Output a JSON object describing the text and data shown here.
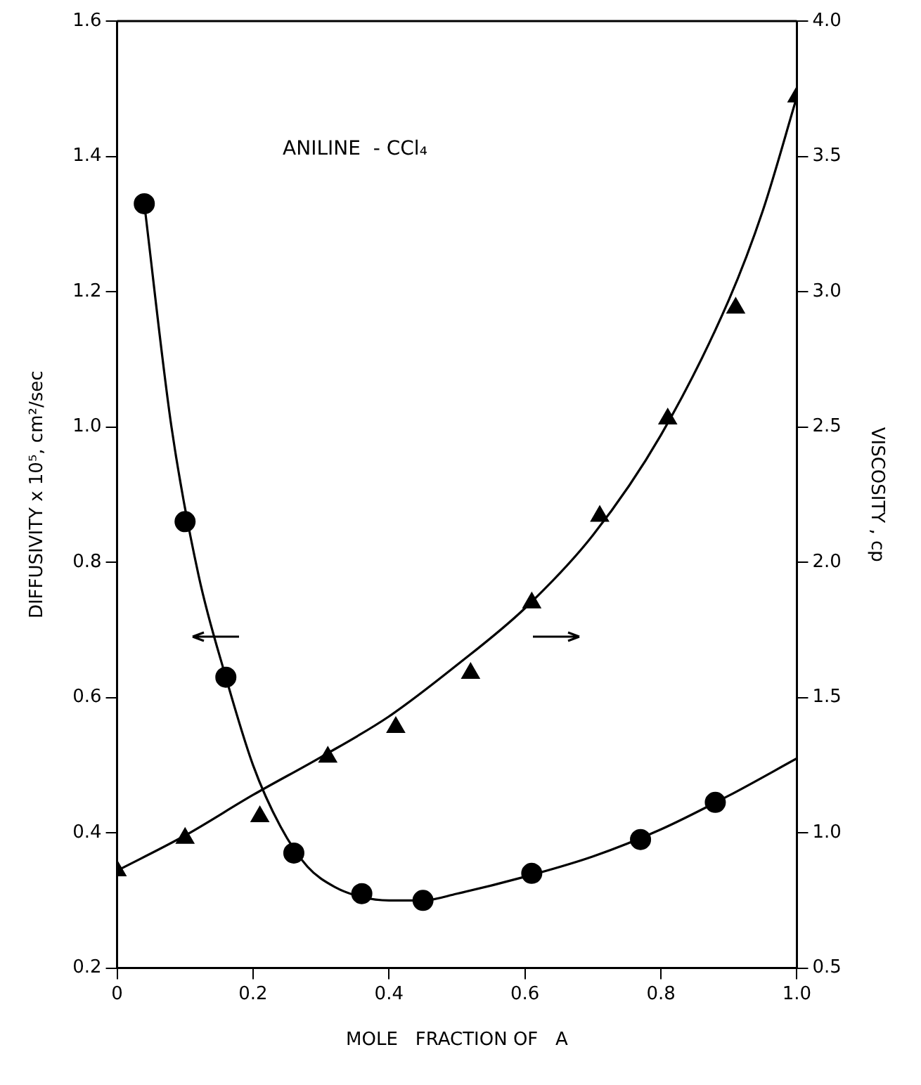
{
  "chart_data": {
    "type": "scatter",
    "xlabel": "MOLE   FRACTION OF   A",
    "ylabel": "DIFFUSIVITY x 10⁵, cm²/sec",
    "y2label": "VISCOSITY , cp",
    "annotations": [
      "ANILINE  - CCl₄"
    ],
    "xlim": [
      0,
      1
    ],
    "xticks": [
      0,
      0.2,
      0.4,
      0.6,
      0.8,
      {
        "value": 1,
        "label": "1.0"
      }
    ],
    "ylim": [
      0.2,
      1.6
    ],
    "yticks": [
      0.2,
      0.4,
      0.6,
      0.8,
      {
        "value": 1,
        "label": "1.0"
      },
      1.2,
      1.4,
      1.6
    ],
    "y2lim": [
      0.5,
      4
    ],
    "y2ticks": [
      0.5,
      {
        "value": 1,
        "label": "1.0"
      },
      1.5,
      {
        "value": 2,
        "label": "2.0"
      },
      2.5,
      {
        "value": 3,
        "label": "3.0"
      },
      3.5,
      {
        "value": 4,
        "label": "4.0"
      }
    ],
    "grid": false,
    "legend": false,
    "series": [
      {
        "type": "scatter",
        "marker": "circle",
        "color": "#000000",
        "x": [
          0.04,
          0.1,
          0.16,
          0.26,
          0.36,
          0.45,
          0.61,
          0.77,
          0.88
        ],
        "values": [
          1.33,
          0.86,
          0.63,
          0.37,
          0.31,
          0.3,
          0.34,
          0.39,
          0.445
        ]
      },
      {
        "type": "line",
        "marker": "none",
        "line_style": "solid",
        "color": "#000000",
        "x": [
          0.04,
          0.08,
          0.12,
          0.16,
          0.2,
          0.24,
          0.28,
          0.32,
          0.36,
          0.4,
          0.45,
          0.5,
          0.6,
          0.7,
          0.8,
          0.9,
          1.0
        ],
        "values": [
          1.33,
          1.0,
          0.78,
          0.63,
          0.5,
          0.41,
          0.35,
          0.32,
          0.305,
          0.3,
          0.3,
          0.31,
          0.335,
          0.365,
          0.405,
          0.455,
          0.51
        ]
      },
      {
        "type": "scatter",
        "marker": "triangle",
        "axis": "y2",
        "color": "#000000",
        "x": [
          0,
          0.1,
          0.21,
          0.31,
          0.41,
          0.52,
          0.61,
          0.71,
          0.81,
          0.91,
          1.0
        ],
        "values": [
          0.86,
          0.98,
          1.06,
          1.28,
          1.39,
          1.59,
          1.85,
          2.17,
          2.53,
          2.94,
          3.72
        ]
      },
      {
        "type": "line",
        "marker": "none",
        "line_style": "solid",
        "axis": "y2",
        "color": "#000000",
        "x": [
          0,
          0.1,
          0.2,
          0.3,
          0.4,
          0.5,
          0.6,
          0.7,
          0.8,
          0.9,
          0.95,
          1.0
        ],
        "values": [
          0.86,
          0.99,
          1.14,
          1.28,
          1.43,
          1.62,
          1.83,
          2.1,
          2.47,
          2.97,
          3.3,
          3.72
        ]
      }
    ]
  }
}
